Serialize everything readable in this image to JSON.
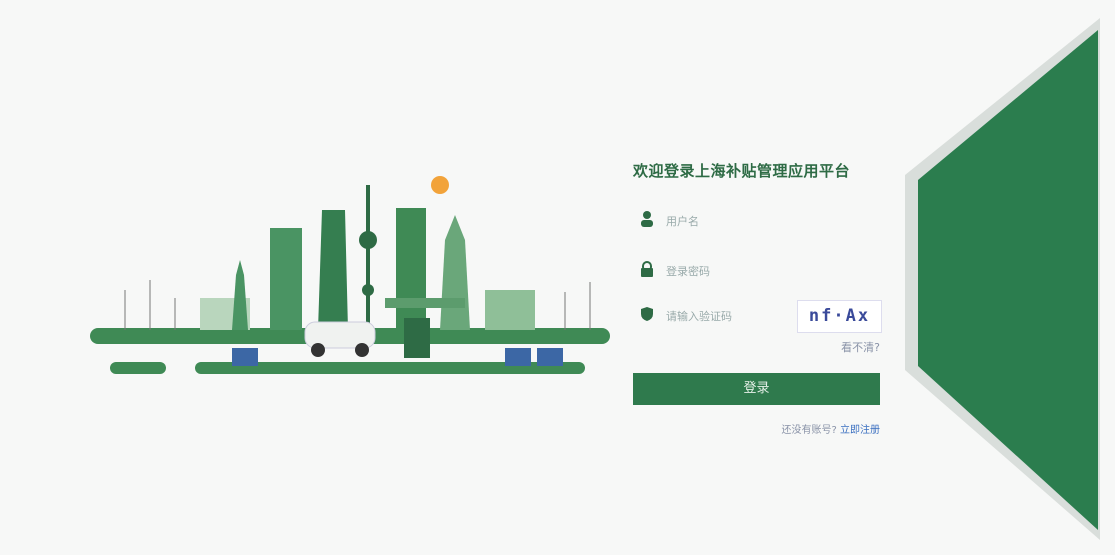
{
  "form": {
    "title": "欢迎登录上海补贴管理应用平台",
    "fields": [
      {
        "placeholder": "用户名"
      },
      {
        "placeholder": "登录密码"
      },
      {
        "placeholder": "请输入验证码"
      }
    ],
    "captcha": "nf·Ax",
    "refresh_link": "看不清?",
    "submit": "登录",
    "register_prompt": "还没有账号?",
    "register_link": "立即注册"
  }
}
